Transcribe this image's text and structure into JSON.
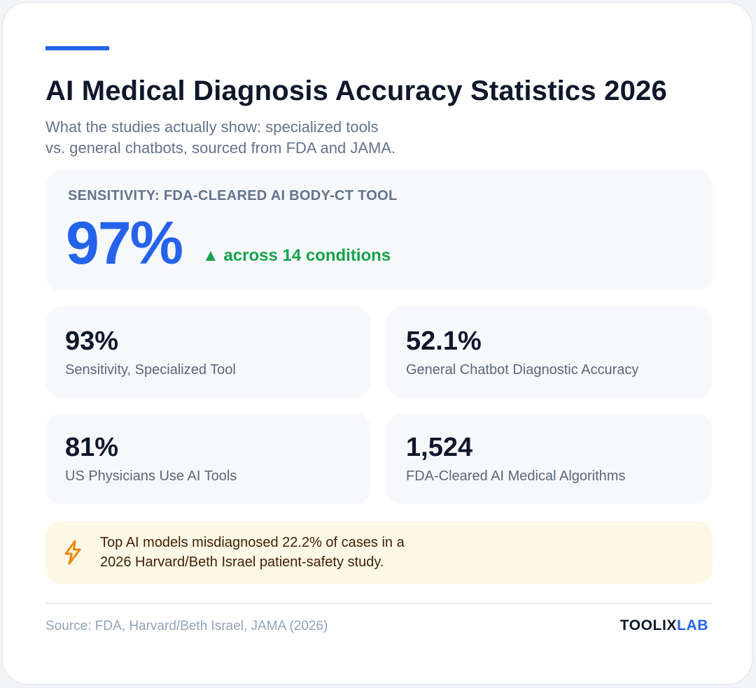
{
  "header": {
    "title": "AI Medical Diagnosis Accuracy Statistics 2026",
    "subtitle_line1": "What the studies actually show: specialized tools",
    "subtitle_line2": "vs. general chatbots, sourced from FDA and JAMA."
  },
  "hero": {
    "label": "SENSITIVITY: FDA-CLEARED AI BODY-CT TOOL",
    "value": "97%",
    "delta": "▲ across 14 conditions"
  },
  "stats": [
    {
      "value": "93%",
      "label": "Sensitivity, Specialized Tool"
    },
    {
      "value": "52.1%",
      "label": "General Chatbot Diagnostic Accuracy"
    },
    {
      "value": "81%",
      "label": "US Physicians Use AI Tools"
    },
    {
      "value": "1,524",
      "label": "FDA-Cleared AI Medical Algorithms"
    }
  ],
  "alert": {
    "icon": "lightning-bolt-icon",
    "line1": "Top AI models misdiagnosed 22.2% of cases in a",
    "line2": "2026 Harvard/Beth Israel patient-safety study."
  },
  "footer": {
    "source": "Source: FDA, Harvard/Beth Israel, JAMA (2026)",
    "brand_part1": "TOOLIX",
    "brand_part2": "LAB"
  },
  "colors": {
    "accent": "#2563eb",
    "positive": "#16a34a",
    "warning_bg": "#fdf8e6",
    "warning_icon": "#e8890c"
  }
}
